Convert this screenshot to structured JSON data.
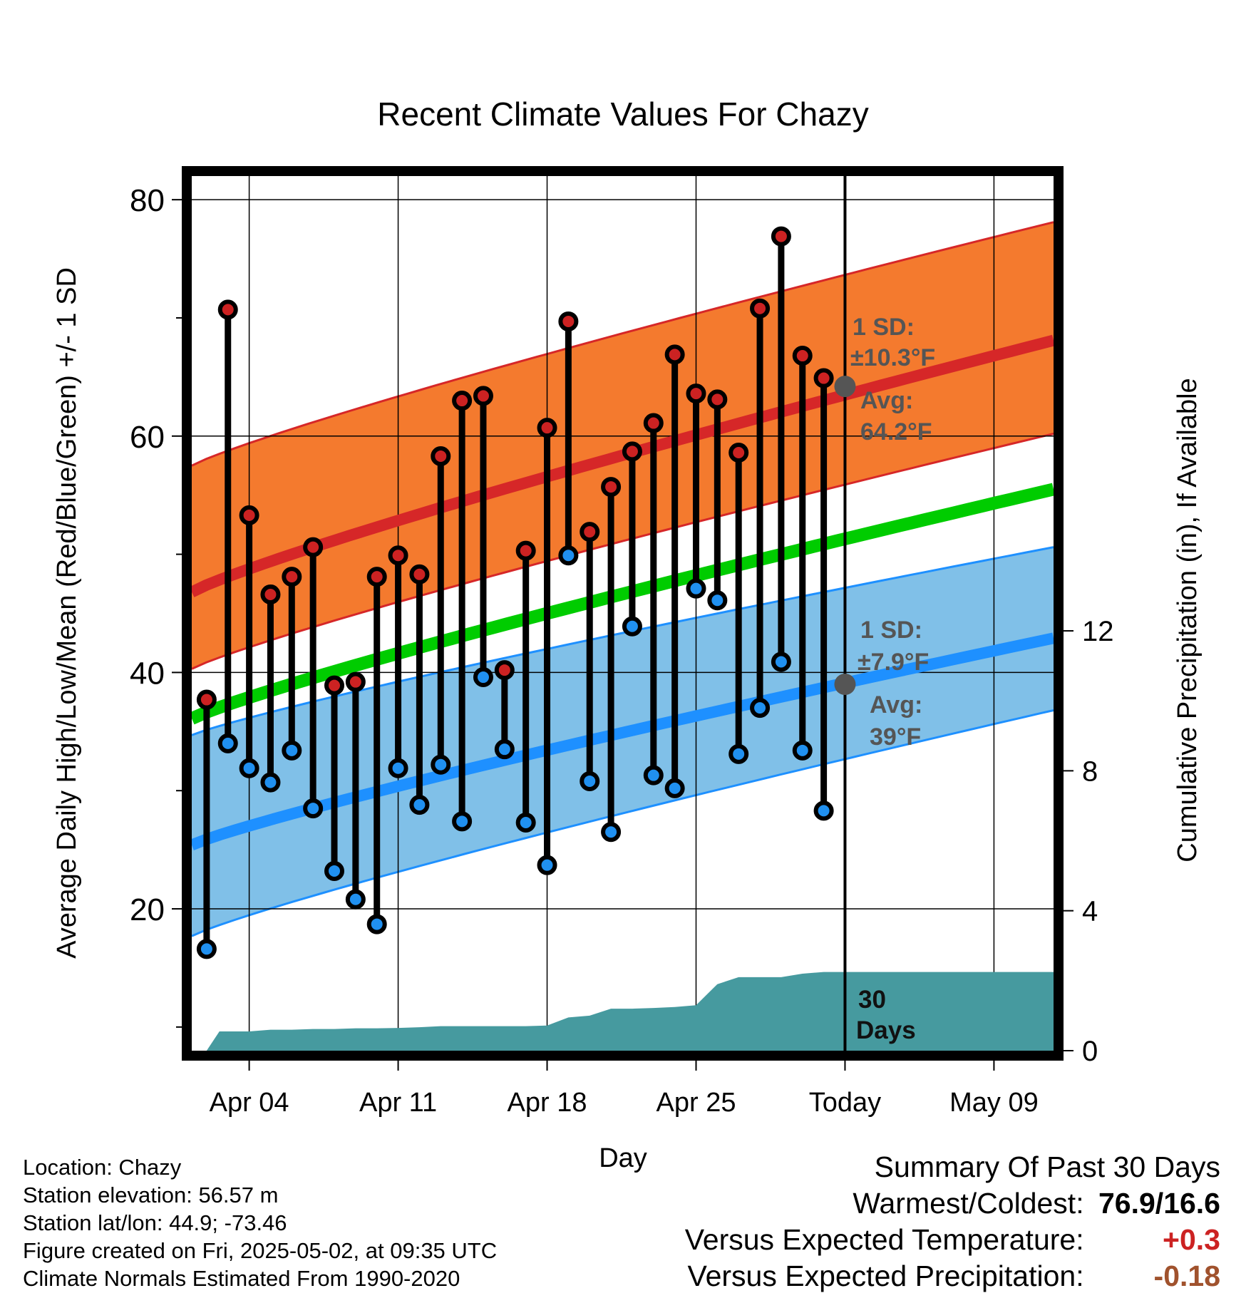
{
  "chart_data": {
    "type": "line",
    "title": "Recent Climate Values For Chazy",
    "xlabel": "Day",
    "ylabel": "Average Daily High/Low/Mean (Red/Blue/Green) +/- 1 SD",
    "ylabel_right": "Cumulative Precipitation (in), If Available",
    "xlim_days": [
      -29.7,
      10.8
    ],
    "ylim": [
      8,
      82
    ],
    "ylim_right": [
      0,
      25
    ],
    "x_ticks": [
      {
        "day": -27,
        "label": "Apr 04"
      },
      {
        "day": -20,
        "label": "Apr 11"
      },
      {
        "day": -13,
        "label": "Apr 18"
      },
      {
        "day": -6,
        "label": "Apr 25"
      },
      {
        "day": 1,
        "label": "Today"
      },
      {
        "day": 8,
        "label": "May 09"
      }
    ],
    "y_ticks": [
      20,
      40,
      60,
      80
    ],
    "y_ticks_right": [
      0,
      4,
      8,
      12
    ],
    "grid": true,
    "colors": {
      "high_band": "#f47a2e",
      "high_line": "#d62728",
      "low_band": "#80c0e8",
      "low_line": "#1e90ff",
      "mean_line": "#00cc00",
      "precip": "#469a9f",
      "high_dot": "#cc2222",
      "low_dot": "#2090f0",
      "annotation": "#555555"
    },
    "observations": {
      "day": [
        -29,
        -28,
        -27,
        -26,
        -25,
        -24,
        -23,
        -22,
        -21,
        -20,
        -19,
        -18,
        -17,
        -16,
        -15,
        -14,
        -13,
        -12,
        -11,
        -10,
        -9,
        -8,
        -7,
        -6,
        -5,
        -4,
        -3,
        -2,
        -1,
        0
      ],
      "high": [
        37.7,
        70.7,
        53.3,
        46.6,
        48.1,
        50.6,
        38.9,
        39.2,
        48.1,
        49.9,
        48.3,
        58.3,
        63.0,
        63.4,
        40.2,
        50.3,
        60.7,
        69.7,
        51.9,
        55.7,
        58.7,
        61.1,
        66.9,
        63.6,
        63.1,
        58.6,
        70.8,
        76.9,
        66.8,
        64.9
      ],
      "low": [
        16.6,
        34.0,
        31.9,
        30.7,
        33.4,
        28.5,
        23.2,
        20.8,
        18.7,
        31.9,
        28.8,
        32.2,
        27.4,
        39.6,
        33.5,
        27.3,
        23.7,
        49.9,
        30.8,
        26.5,
        43.9,
        31.3,
        30.2,
        47.1,
        46.1,
        33.1,
        37.0,
        40.9,
        33.4,
        28.3
      ]
    },
    "normals": {
      "day": [
        -29.7,
        10.8
      ],
      "high_avg": [
        46.8,
        68.1
      ],
      "high_upper": [
        57.5,
        78.1
      ],
      "high_lower": [
        40.3,
        60.2
      ],
      "low_avg": [
        25.4,
        42.9
      ],
      "low_upper": [
        34.7,
        50.6
      ],
      "low_lower": [
        17.7,
        36.8
      ],
      "mean_avg": [
        36.1,
        55.5
      ]
    },
    "precipitation": {
      "day": [
        -29.7,
        -29,
        -28.4,
        -27.7,
        -27,
        -26,
        -25,
        -24,
        -23,
        -22,
        -21,
        -20,
        -19,
        -18,
        -17,
        -16,
        -15,
        -14,
        -13,
        -12,
        -11,
        -10,
        -9,
        -8,
        -7,
        -6,
        -5,
        -4,
        -3,
        -2,
        -1,
        0,
        1,
        10.8
      ],
      "cumulative": [
        0,
        0,
        0.55,
        0.55,
        0.55,
        0.6,
        0.6,
        0.62,
        0.62,
        0.64,
        0.64,
        0.65,
        0.67,
        0.7,
        0.7,
        0.7,
        0.7,
        0.7,
        0.72,
        0.95,
        1.0,
        1.2,
        1.2,
        1.22,
        1.25,
        1.3,
        1.9,
        2.1,
        2.1,
        2.1,
        2.2,
        2.25,
        2.25,
        2.25
      ]
    },
    "annotations": {
      "high_sd_label": "1 SD:",
      "high_sd_value": "±10.3°F",
      "high_avg_label": "Avg:",
      "high_avg_value": "64.2°F",
      "low_sd_label": "1 SD:",
      "low_sd_value": "±7.9°F",
      "low_avg_label": "Avg:",
      "low_avg_value": "39°F",
      "high_avg_point": 64.2,
      "low_avg_point": 39.0,
      "window_line1": "30",
      "window_line2": "Days"
    }
  },
  "station_info": {
    "location": "Location: Chazy",
    "elevation": "Station elevation: 56.57 m",
    "latlon": "Station lat/lon: 44.9; -73.46",
    "created": "Figure created on Fri, 2025-05-02, at 09:35 UTC",
    "normals": "Climate Normals Estimated From 1990-2020"
  },
  "summary": {
    "heading": "Summary Of Past 30 Days",
    "warm_cold_label": "Warmest/Coldest:",
    "warm_cold_value": "76.9/16.6",
    "temp_label": "Versus Expected Temperature:",
    "temp_value": "+0.3",
    "precip_label": "Versus Expected Precipitation:",
    "precip_value": "-0.18"
  }
}
